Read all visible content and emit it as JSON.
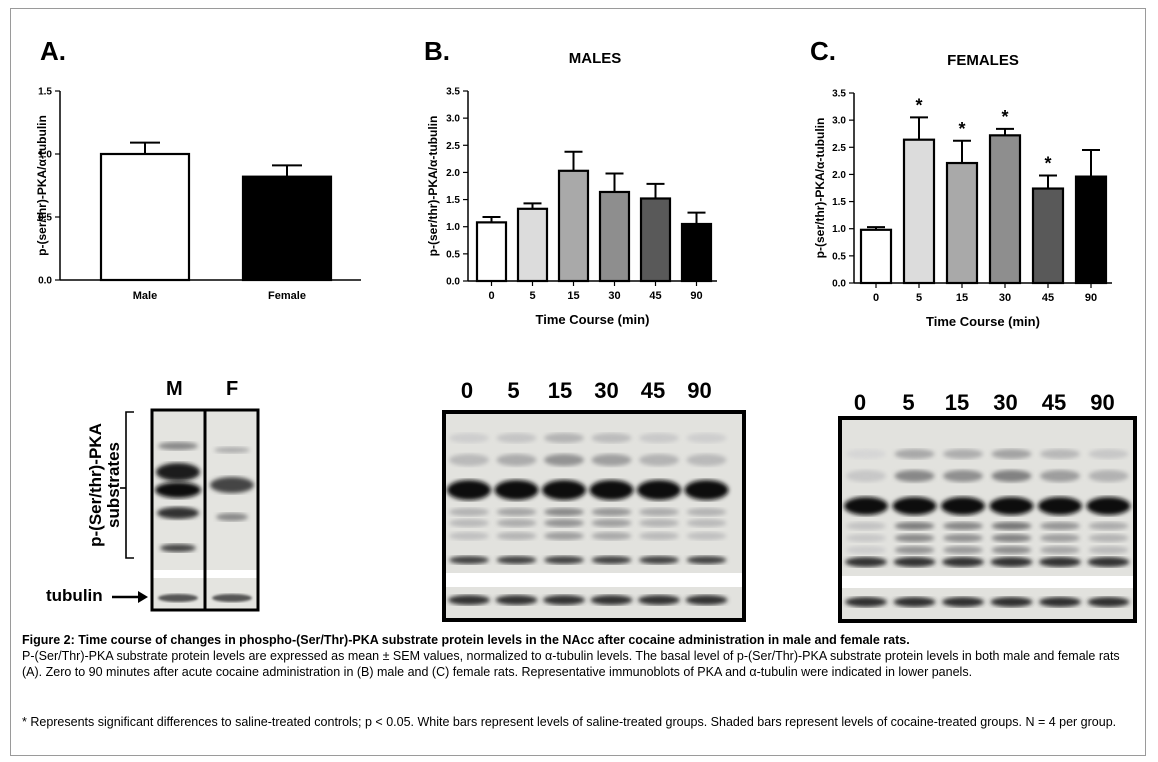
{
  "chart_data": [
    {
      "type": "bar",
      "panel": "A.",
      "title": "",
      "ylabel": "p-(ser/thr)-PKA/α-tubulin",
      "xlabel": "",
      "categories": [
        "Male",
        "Female"
      ],
      "values": [
        1.0,
        0.82
      ],
      "errors": [
        0.09,
        0.09
      ],
      "fills": [
        "#ffffff",
        "#000000"
      ],
      "ylim": [
        0,
        1.5
      ],
      "yticks": [
        "0.0",
        "0.5",
        "1.0",
        "1.5"
      ],
      "significant": [
        false,
        false
      ]
    },
    {
      "type": "bar",
      "panel": "B.",
      "title": "MALES",
      "ylabel": "p-(ser/thr)-PKA/α-tubulin",
      "xlabel": "Time Course (min)",
      "categories": [
        "0",
        "5",
        "15",
        "30",
        "45",
        "90"
      ],
      "values": [
        1.08,
        1.33,
        2.03,
        1.64,
        1.52,
        1.05
      ],
      "errors": [
        0.1,
        0.1,
        0.35,
        0.34,
        0.27,
        0.21
      ],
      "fills": [
        "#ffffff",
        "#dcdcdc",
        "#a9a9a9",
        "#8e8e8e",
        "#595959",
        "#000000"
      ],
      "ylim": [
        0,
        3.5
      ],
      "yticks": [
        "0.0",
        "0.5",
        "1.0",
        "1.5",
        "2.0",
        "2.5",
        "3.0",
        "3.5"
      ],
      "significant": [
        false,
        false,
        false,
        false,
        false,
        false
      ]
    },
    {
      "type": "bar",
      "panel": "C.",
      "title": "FEMALES",
      "ylabel": "p-(ser/thr)-PKA/α-tubulin",
      "xlabel": "Time Course (min)",
      "categories": [
        "0",
        "5",
        "15",
        "30",
        "45",
        "90"
      ],
      "values": [
        0.98,
        2.64,
        2.21,
        2.72,
        1.74,
        1.96
      ],
      "errors": [
        0.05,
        0.41,
        0.41,
        0.12,
        0.24,
        0.49
      ],
      "fills": [
        "#ffffff",
        "#dcdcdc",
        "#a9a9a9",
        "#8e8e8e",
        "#595959",
        "#000000"
      ],
      "ylim": [
        0,
        3.5
      ],
      "yticks": [
        "0.0",
        "0.5",
        "1.0",
        "1.5",
        "2.0",
        "2.5",
        "3.0",
        "3.5"
      ],
      "significant": [
        false,
        true,
        true,
        true,
        true,
        false
      ],
      "significance_mark": "*"
    }
  ],
  "blots": {
    "sex": {
      "lanes": [
        "M",
        "F"
      ],
      "side_label": "p-(Ser/thr)-PKA substrates",
      "side_label_line1": "p-(Ser/thr)-PKA",
      "side_label_line2": "substrates",
      "tubulin_label": "tubulin"
    },
    "males": {
      "lanes": [
        "0",
        "5",
        "15",
        "30",
        "45",
        "90"
      ]
    },
    "females": {
      "lanes": [
        "0",
        "5",
        "15",
        "30",
        "45",
        "90"
      ]
    }
  },
  "caption": {
    "title": "Figure 2: Time course of changes in phospho-(Ser/Thr)-PKA substrate  protein levels in the NAcc after cocaine administration in male and female   rats.",
    "body": "P-(Ser/Thr)-PKA substrate protein levels are expressed as mean ± SEM   values, normalized to α-tubulin levels. The basal level of p-(Ser/Thr)-PKA substrate protein levels in both male and female rats (A). Zero to 90 minutes after acute cocaine  administration in (B) male and (C) female rats. Representative   immunoblots of PKA and α-tubulin were indicated in lower panels.",
    "note": "* Represents significant differences to saline-treated controls; p < 0.05.   White bars represent levels of saline-treated groups. Shaded bars represent levels of cocaine-treated groups. N = 4 per group."
  }
}
